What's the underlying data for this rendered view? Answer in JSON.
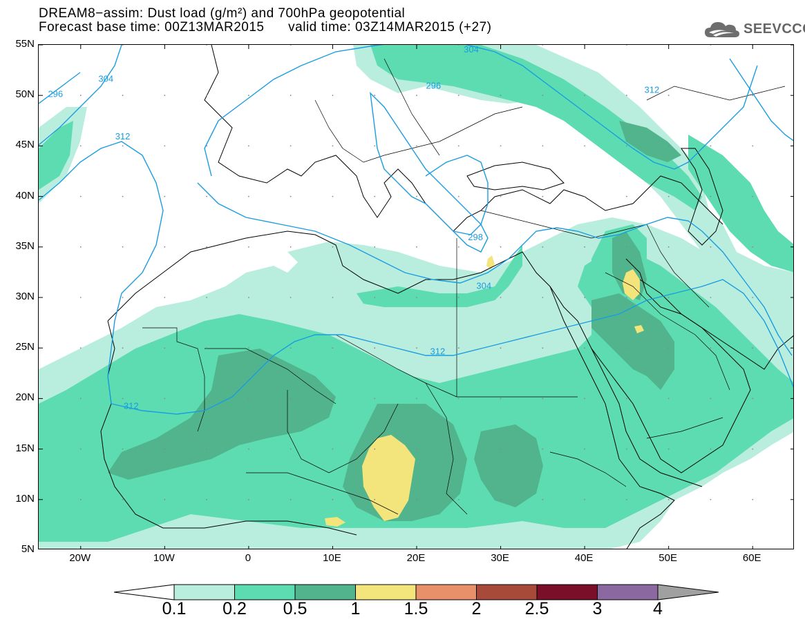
{
  "title": {
    "line1": "DREAM8−assim: Dust load (g/m²) and 700hPa geopotential",
    "line2": "Forecast base time: 00Z13MAR2015      valid time: 03Z14MAR2015 (+27)"
  },
  "logo": {
    "text": "SEEVCCC",
    "icon": "cloud-icon"
  },
  "axes": {
    "lat_ticks": [
      "55N",
      "50N",
      "45N",
      "40N",
      "35N",
      "30N",
      "25N",
      "20N",
      "15N",
      "10N",
      "5N"
    ],
    "lat_values": [
      55,
      50,
      45,
      40,
      35,
      30,
      25,
      20,
      15,
      10,
      5
    ],
    "lon_ticks": [
      "20W",
      "10W",
      "0",
      "10E",
      "20E",
      "30E",
      "40E",
      "50E",
      "60E"
    ],
    "lon_values": [
      -20,
      -10,
      0,
      10,
      20,
      30,
      40,
      50,
      60
    ],
    "lon_range": [
      -25,
      65
    ],
    "lat_range": [
      5,
      55
    ]
  },
  "contour_labels": [
    {
      "text": "296",
      "lon": -23.0,
      "lat": 50.2
    },
    {
      "text": "304",
      "lon": -17.0,
      "lat": 51.7
    },
    {
      "text": "312",
      "lon": -15.0,
      "lat": 46.0
    },
    {
      "text": "312",
      "lon": -28.0,
      "lat": 54.8
    },
    {
      "text": "304",
      "lon": 26.5,
      "lat": 54.6
    },
    {
      "text": "296",
      "lon": 22.0,
      "lat": 51.0
    },
    {
      "text": "298",
      "lon": 27.0,
      "lat": 36.0
    },
    {
      "text": "304",
      "lon": 28.0,
      "lat": 31.2
    },
    {
      "text": "312",
      "lon": 22.5,
      "lat": 24.7
    },
    {
      "text": "312",
      "lon": -14.0,
      "lat": 19.3
    },
    {
      "text": "312",
      "lon": 48.0,
      "lat": 50.6
    }
  ],
  "colorbar": {
    "labels": [
      "0.1",
      "0.2",
      "0.5",
      "1",
      "1.5",
      "2",
      "2.5",
      "3",
      "4"
    ],
    "colors": [
      "#b9eddd",
      "#5cdcb0",
      "#52b48c",
      "#f3e47c",
      "#e8906a",
      "#a84a3a",
      "#7a0f2a",
      "#8c68a0"
    ],
    "under_color": "#ffffff",
    "over_color": "#a0a0a0"
  },
  "colors": {
    "contour": "#1a9de0",
    "border": "#000000"
  }
}
